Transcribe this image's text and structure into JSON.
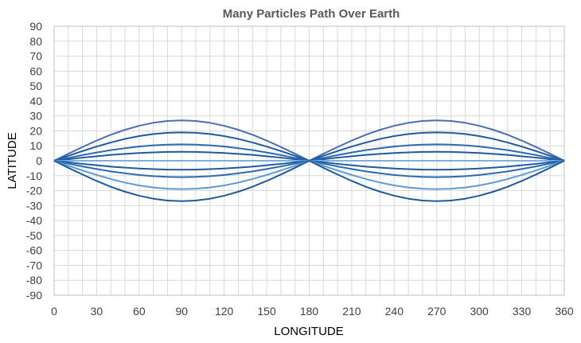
{
  "chart_data": {
    "type": "line",
    "title": "Many Particles Path Over Earth",
    "xlabel": "LONGITUDE",
    "ylabel": "LATITUDE",
    "xlim": [
      0,
      360
    ],
    "ylim": [
      -90,
      90
    ],
    "x_ticks": [
      0,
      30,
      60,
      90,
      120,
      150,
      180,
      210,
      240,
      270,
      300,
      330,
      360
    ],
    "y_ticks": [
      90,
      80,
      70,
      60,
      50,
      40,
      30,
      20,
      10,
      0,
      -10,
      -20,
      -30,
      -40,
      -50,
      -60,
      -70,
      -80,
      -90
    ],
    "grid": true,
    "legend": "none",
    "x": [
      0,
      10,
      20,
      30,
      40,
      50,
      60,
      70,
      80,
      90,
      100,
      110,
      120,
      130,
      140,
      150,
      160,
      170,
      180,
      190,
      200,
      210,
      220,
      230,
      240,
      250,
      260,
      270,
      280,
      290,
      300,
      310,
      320,
      330,
      340,
      350,
      360
    ],
    "series": [
      {
        "color": "#4a6fb5",
        "values": [
          0,
          4.7,
          9.2,
          13.5,
          17.4,
          20.7,
          23.4,
          25.4,
          26.6,
          27,
          26.6,
          25.4,
          23.4,
          20.7,
          17.4,
          13.5,
          9.2,
          4.7,
          0,
          4.7,
          9.2,
          13.5,
          17.4,
          20.7,
          23.4,
          25.4,
          26.6,
          27,
          26.6,
          25.4,
          23.4,
          20.7,
          17.4,
          13.5,
          9.2,
          4.7,
          0
        ]
      },
      {
        "color": "#1e5a9e",
        "values": [
          0,
          3.3,
          6.5,
          9.5,
          12.2,
          14.6,
          16.5,
          17.9,
          18.7,
          19,
          18.7,
          17.9,
          16.5,
          14.6,
          12.2,
          9.5,
          6.5,
          3.3,
          0,
          3.3,
          6.5,
          9.5,
          12.2,
          14.6,
          16.5,
          17.9,
          18.7,
          19,
          18.7,
          17.9,
          16.5,
          14.6,
          12.2,
          9.5,
          6.5,
          3.3,
          0
        ]
      },
      {
        "color": "#2b6cb0",
        "values": [
          0,
          1.9,
          3.8,
          5.5,
          7.1,
          8.4,
          9.5,
          10.3,
          10.8,
          11,
          10.8,
          10.3,
          9.5,
          8.4,
          7.1,
          5.5,
          3.8,
          1.9,
          0,
          1.9,
          3.8,
          5.5,
          7.1,
          8.4,
          9.5,
          10.3,
          10.8,
          11,
          10.8,
          10.3,
          9.5,
          8.4,
          7.1,
          5.5,
          3.8,
          1.9,
          0
        ]
      },
      {
        "color": "#1e5a9e",
        "values": [
          0,
          1,
          2.1,
          3,
          3.9,
          4.6,
          5.2,
          5.6,
          5.9,
          6,
          5.9,
          5.6,
          5.2,
          4.6,
          3.9,
          3,
          2.1,
          1,
          0,
          1,
          2.1,
          3,
          3.9,
          4.6,
          5.2,
          5.6,
          5.9,
          6,
          5.9,
          5.6,
          5.2,
          4.6,
          3.9,
          3,
          2.1,
          1,
          0
        ]
      },
      {
        "color": "#7fb0dc",
        "values": [
          0,
          0,
          0,
          0,
          0,
          0,
          0,
          0,
          0,
          0,
          0,
          0,
          0,
          0,
          0,
          0,
          0,
          0,
          0,
          0,
          0,
          0,
          0,
          0,
          0,
          0,
          0,
          0,
          0,
          0,
          0,
          0,
          0,
          0,
          0,
          0,
          0
        ]
      },
      {
        "color": "#1e5a9e",
        "values": [
          0,
          -1,
          -2.1,
          -3,
          -3.9,
          -4.6,
          -5.2,
          -5.6,
          -5.9,
          -6,
          -5.9,
          -5.6,
          -5.2,
          -4.6,
          -3.9,
          -3,
          -2.1,
          -1,
          0,
          -1,
          -2.1,
          -3,
          -3.9,
          -4.6,
          -5.2,
          -5.6,
          -5.9,
          -6,
          -5.9,
          -5.6,
          -5.2,
          -4.6,
          -3.9,
          -3,
          -2.1,
          -1,
          0
        ]
      },
      {
        "color": "#2b6cb0",
        "values": [
          0,
          -1.9,
          -3.8,
          -5.5,
          -7.1,
          -8.4,
          -9.5,
          -10.3,
          -10.8,
          -11,
          -10.8,
          -10.3,
          -9.5,
          -8.4,
          -7.1,
          -5.5,
          -3.8,
          -1.9,
          0,
          -1.9,
          -3.8,
          -5.5,
          -7.1,
          -8.4,
          -9.5,
          -10.3,
          -10.8,
          -11,
          -10.8,
          -10.3,
          -9.5,
          -8.4,
          -7.1,
          -5.5,
          -3.8,
          -1.9,
          0
        ]
      },
      {
        "color": "#5b9bd5",
        "values": [
          0,
          -3.3,
          -6.5,
          -9.5,
          -12.2,
          -14.6,
          -16.5,
          -17.9,
          -18.7,
          -19,
          -18.7,
          -17.9,
          -16.5,
          -14.6,
          -12.2,
          -9.5,
          -6.5,
          -3.3,
          0,
          -3.3,
          -6.5,
          -9.5,
          -12.2,
          -14.6,
          -16.5,
          -17.9,
          -18.7,
          -19,
          -18.7,
          -17.9,
          -16.5,
          -14.6,
          -12.2,
          -9.5,
          -6.5,
          -3.3,
          0
        ]
      },
      {
        "color": "#1e5a9e",
        "values": [
          0,
          -4.7,
          -9.2,
          -13.5,
          -17.4,
          -20.7,
          -23.4,
          -25.4,
          -26.6,
          -27,
          -26.6,
          -25.4,
          -23.4,
          -20.7,
          -17.4,
          -13.5,
          -9.2,
          -4.7,
          0,
          -4.7,
          -9.2,
          -13.5,
          -17.4,
          -20.7,
          -23.4,
          -25.4,
          -26.6,
          -27,
          -26.6,
          -25.4,
          -23.4,
          -20.7,
          -17.4,
          -13.5,
          -9.2,
          -4.7,
          0
        ]
      }
    ]
  }
}
